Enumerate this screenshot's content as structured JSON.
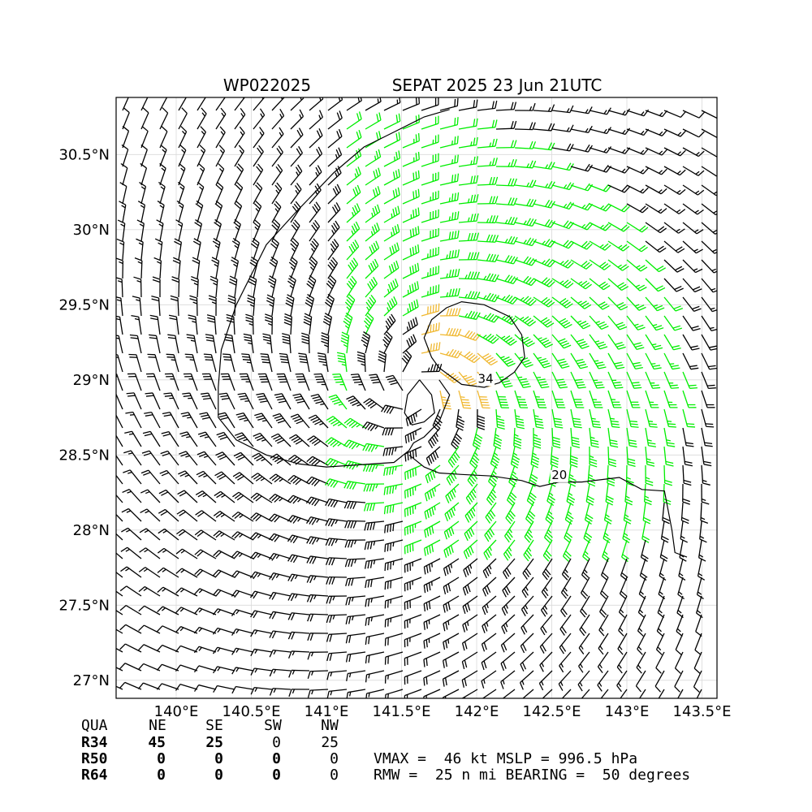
{
  "chart_data": {
    "type": "wind-barb-map",
    "title_left": "WP022025",
    "title_right": "SEPAT 2025 23 Jun 21UTC",
    "xlim": [
      139.6,
      143.6
    ],
    "ylim": [
      26.88,
      30.88
    ],
    "x_ticks": [
      {
        "value": 140.0,
        "label": "140°E"
      },
      {
        "value": 140.5,
        "label": "140.5°E"
      },
      {
        "value": 141.0,
        "label": "141°E"
      },
      {
        "value": 141.5,
        "label": "141.5°E"
      },
      {
        "value": 142.0,
        "label": "142°E"
      },
      {
        "value": 142.5,
        "label": "142.5°E"
      },
      {
        "value": 143.0,
        "label": "143°E"
      },
      {
        "value": 143.5,
        "label": "143.5°E"
      }
    ],
    "y_ticks": [
      {
        "value": 27.0,
        "label": "27°N"
      },
      {
        "value": 27.5,
        "label": "27.5°N"
      },
      {
        "value": 28.0,
        "label": "28°N"
      },
      {
        "value": 28.5,
        "label": "28.5°N"
      },
      {
        "value": 29.0,
        "label": "29°N"
      },
      {
        "value": 29.5,
        "label": "29.5°N"
      },
      {
        "value": 30.0,
        "label": "30°N"
      },
      {
        "value": 30.5,
        "label": "30.5°N"
      }
    ],
    "grid": true,
    "center": {
      "lon": 141.6,
      "lat": 28.95
    },
    "barb_colors": {
      "below_34kt": "#000000",
      "34_to_50kt": "#00ee00",
      "50_to_64kt": "#f0b830"
    },
    "contours": [
      {
        "label": "20",
        "label_lon": 142.55,
        "label_lat": 28.34,
        "path": [
          [
            141.75,
            29.0
          ],
          [
            141.82,
            28.9
          ],
          [
            141.75,
            28.72
          ],
          [
            141.65,
            28.62
          ],
          [
            141.58,
            28.58
          ],
          [
            141.55,
            28.53
          ],
          [
            141.45,
            28.45
          ],
          [
            141.0,
            28.42
          ],
          [
            140.82,
            28.44
          ],
          [
            140.6,
            28.5
          ],
          [
            140.4,
            28.6
          ],
          [
            140.28,
            28.75
          ],
          [
            140.28,
            28.95
          ],
          [
            140.3,
            29.2
          ],
          [
            140.4,
            29.5
          ],
          [
            140.6,
            29.9
          ],
          [
            140.8,
            30.12
          ],
          [
            141.05,
            30.38
          ],
          [
            141.25,
            30.55
          ],
          [
            141.45,
            30.65
          ],
          [
            141.65,
            30.75
          ],
          [
            141.82,
            30.8
          ]
        ]
      },
      {
        "label": "20",
        "path": [
          [
            141.55,
            28.5
          ],
          [
            141.65,
            28.42
          ],
          [
            141.75,
            28.38
          ],
          [
            141.9,
            28.37
          ],
          [
            142.1,
            28.36
          ],
          [
            142.3,
            28.33
          ],
          [
            142.42,
            28.29
          ],
          [
            142.55,
            28.32
          ],
          [
            142.7,
            28.32
          ],
          [
            142.95,
            28.35
          ],
          [
            143.1,
            28.27
          ],
          [
            143.25,
            28.26
          ],
          [
            143.3,
            28.0
          ],
          [
            143.32,
            27.85
          ],
          [
            143.4,
            27.82
          ]
        ]
      },
      {
        "label": "34",
        "label_lon": 142.06,
        "label_lat": 28.98,
        "path": [
          [
            141.75,
            29.08
          ],
          [
            141.9,
            28.97
          ],
          [
            142.05,
            28.95
          ],
          [
            142.15,
            28.98
          ],
          [
            142.25,
            29.05
          ],
          [
            142.32,
            29.15
          ],
          [
            142.3,
            29.3
          ],
          [
            142.22,
            29.42
          ],
          [
            142.05,
            29.5
          ],
          [
            141.9,
            29.52
          ],
          [
            141.8,
            29.48
          ],
          [
            141.7,
            29.4
          ],
          [
            141.65,
            29.28
          ],
          [
            141.7,
            29.15
          ],
          [
            141.75,
            29.08
          ]
        ]
      },
      {
        "label": "",
        "path": [
          [
            141.62,
            29.0
          ],
          [
            141.7,
            28.9
          ],
          [
            141.72,
            28.78
          ],
          [
            141.65,
            28.72
          ],
          [
            141.57,
            28.7
          ],
          [
            141.52,
            28.78
          ],
          [
            141.54,
            28.9
          ],
          [
            141.62,
            29.0
          ]
        ]
      }
    ],
    "quadrant_table": {
      "headers": [
        "QUA",
        "NE",
        "SE",
        "SW",
        "NW"
      ],
      "rows": [
        {
          "label": "R34",
          "values": [
            "45",
            "25",
            "0",
            "25"
          ]
        },
        {
          "label": "R50",
          "values": [
            "0",
            "0",
            "0",
            "0"
          ]
        },
        {
          "label": "R64",
          "values": [
            "0",
            "0",
            "0",
            "0"
          ]
        }
      ]
    },
    "summary_line1": "VMAX =  46 kt MSLP = 996.5 hPa",
    "summary_line2": "RMW =  25 n mi BEARING =  50 degrees"
  }
}
